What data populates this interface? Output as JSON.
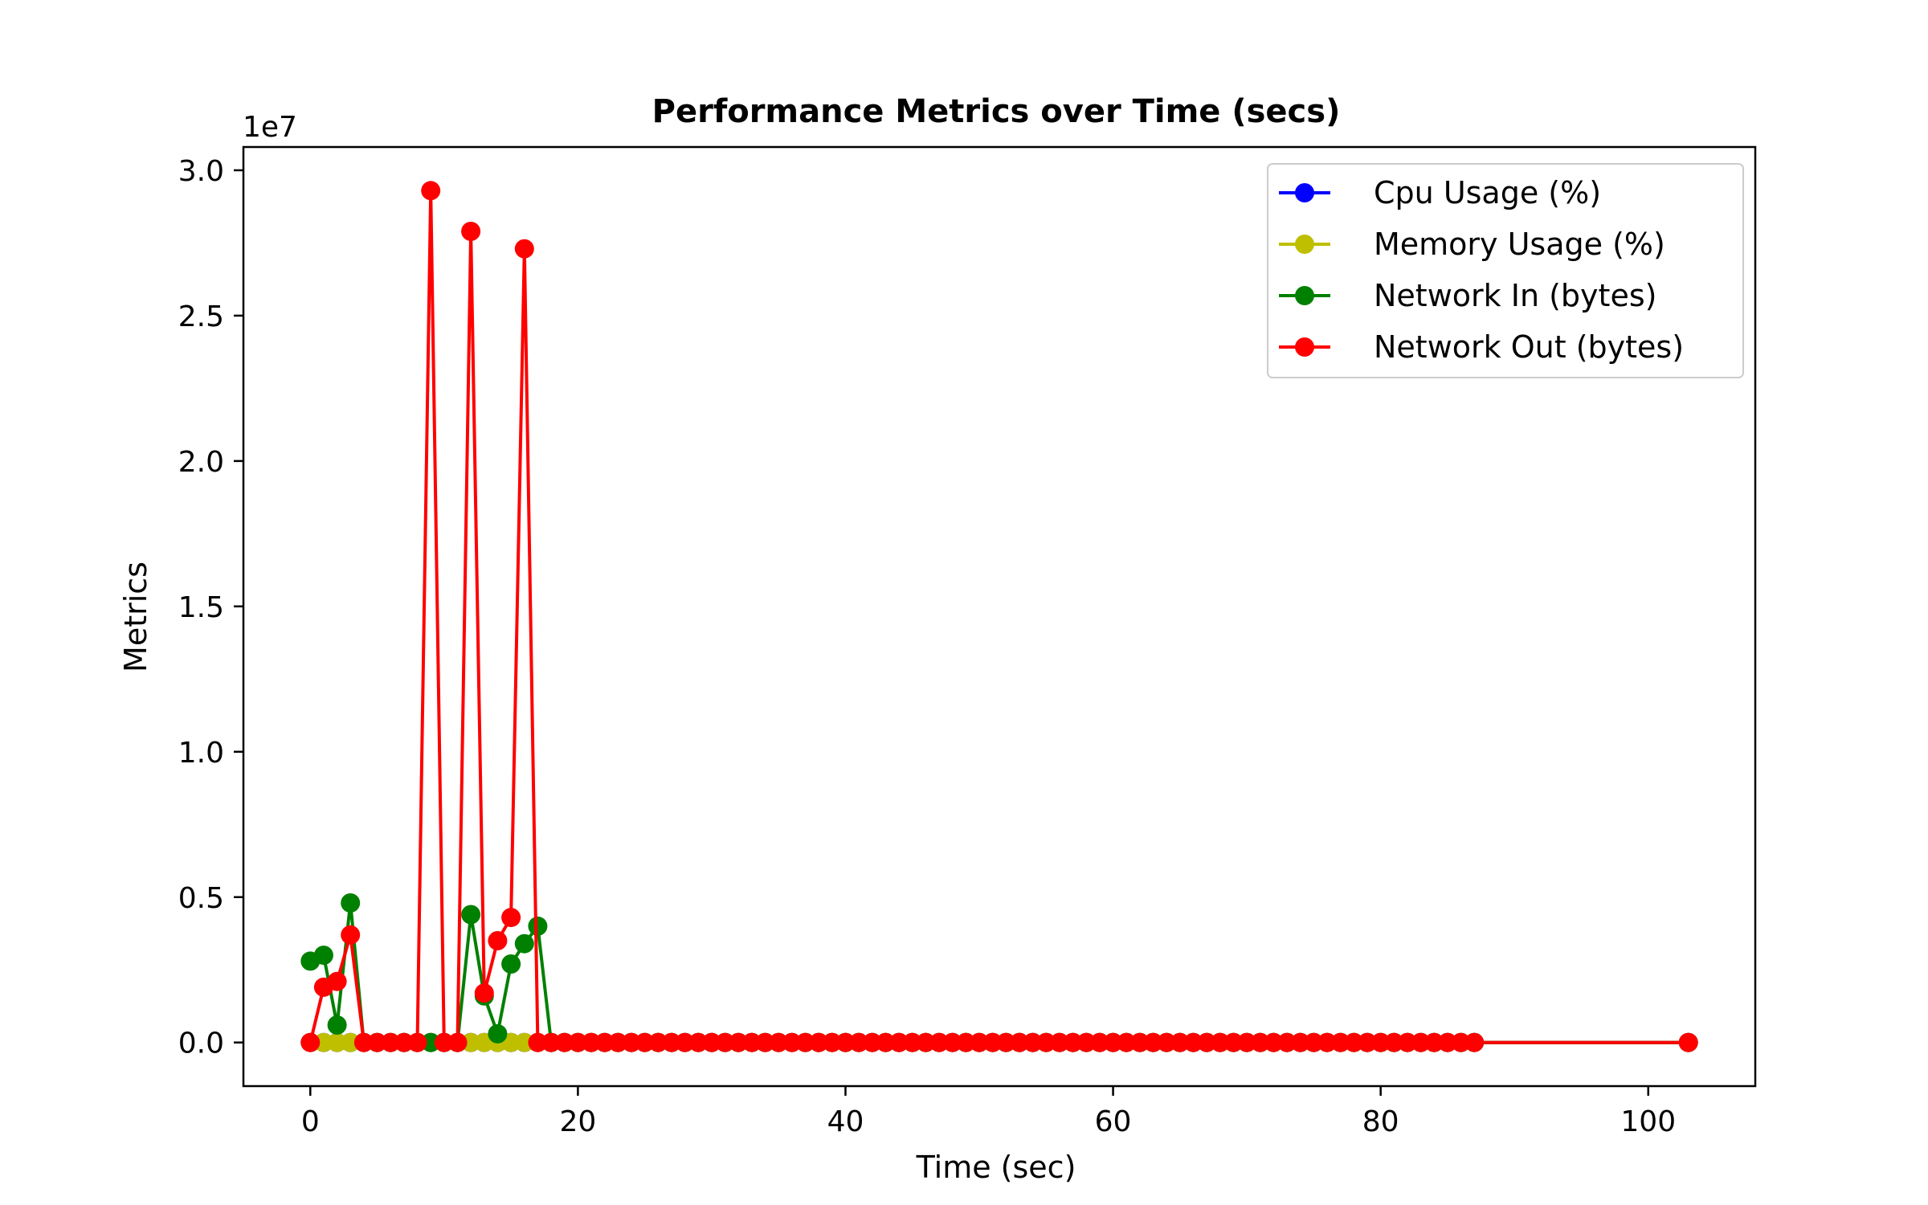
{
  "chart_data": {
    "type": "line",
    "title": "Performance Metrics over Time (secs)",
    "xlabel": "Time (sec)",
    "ylabel": "Metrics",
    "y_offset_label": "1e7",
    "xlim": [
      -5,
      108
    ],
    "ylim": [
      -1500000,
      30800000
    ],
    "x_ticks": [
      0,
      20,
      40,
      60,
      80,
      100
    ],
    "x_tick_labels": [
      "0",
      "20",
      "40",
      "60",
      "80",
      "100"
    ],
    "y_ticks": [
      0,
      5000000,
      10000000,
      15000000,
      20000000,
      25000000,
      30000000
    ],
    "y_tick_labels": [
      "0.0",
      "0.5",
      "1.0",
      "1.5",
      "2.0",
      "2.5",
      "3.0"
    ],
    "grid": false,
    "legend_position": "top-right",
    "x": [
      0,
      1,
      2,
      3,
      4,
      5,
      6,
      7,
      8,
      9,
      10,
      11,
      12,
      13,
      14,
      15,
      16,
      17,
      18,
      19,
      20,
      21,
      22,
      23,
      24,
      25,
      26,
      27,
      28,
      29,
      30,
      31,
      32,
      33,
      34,
      35,
      36,
      37,
      38,
      39,
      40,
      41,
      42,
      43,
      44,
      45,
      46,
      47,
      48,
      49,
      50,
      51,
      52,
      53,
      54,
      55,
      56,
      57,
      58,
      59,
      60,
      61,
      62,
      63,
      64,
      65,
      66,
      67,
      68,
      69,
      70,
      71,
      72,
      73,
      74,
      75,
      76,
      77,
      78,
      79,
      80,
      81,
      82,
      83,
      84,
      85,
      86,
      87,
      103
    ],
    "series": [
      {
        "name": "Cpu Usage (%)",
        "color": "#0000ff",
        "values": [
          0,
          0,
          0,
          0,
          0,
          0,
          0,
          0,
          0,
          0,
          0,
          0,
          0,
          0,
          0,
          0,
          0,
          0,
          0,
          0,
          0,
          0,
          0,
          0,
          0,
          0,
          0,
          0,
          0,
          0,
          0,
          0,
          0,
          0,
          0,
          0,
          0,
          0,
          0,
          0,
          0,
          0,
          0,
          0,
          0,
          0,
          0,
          0,
          0,
          0,
          0,
          0,
          0,
          0,
          0,
          0,
          0,
          0,
          0,
          0,
          0,
          0,
          0,
          0,
          0,
          0,
          0,
          0,
          0,
          0,
          0,
          0,
          0,
          0,
          0,
          0,
          0,
          0,
          0,
          0,
          0,
          0,
          0,
          0,
          0,
          0,
          0,
          0,
          0
        ]
      },
      {
        "name": "Memory Usage (%)",
        "color": "#bfbf00",
        "values": [
          0,
          0,
          0,
          0,
          0,
          0,
          0,
          0,
          0,
          0,
          0,
          0,
          0,
          0,
          0,
          0,
          0,
          0,
          0,
          0,
          0,
          0,
          0,
          0,
          0,
          0,
          0,
          0,
          0,
          0,
          0,
          0,
          0,
          0,
          0,
          0,
          0,
          0,
          0,
          0,
          0,
          0,
          0,
          0,
          0,
          0,
          0,
          0,
          0,
          0,
          0,
          0,
          0,
          0,
          0,
          0,
          0,
          0,
          0,
          0,
          0,
          0,
          0,
          0,
          0,
          0,
          0,
          0,
          0,
          0,
          0,
          0,
          0,
          0,
          0,
          0,
          0,
          0,
          0,
          0,
          0,
          0,
          0,
          0,
          0,
          0,
          0,
          0,
          0
        ]
      },
      {
        "name": "Network In (bytes)",
        "color": "#008000",
        "values": [
          2800000,
          3000000,
          600000,
          4800000,
          0,
          0,
          0,
          0,
          0,
          0,
          0,
          0,
          4400000,
          1600000,
          300000,
          2700000,
          3400000,
          4000000,
          0,
          0,
          0,
          0,
          0,
          0,
          0,
          0,
          0,
          0,
          0,
          0,
          0,
          0,
          0,
          0,
          0,
          0,
          0,
          0,
          0,
          0,
          0,
          0,
          0,
          0,
          0,
          0,
          0,
          0,
          0,
          0,
          0,
          0,
          0,
          0,
          0,
          0,
          0,
          0,
          0,
          0,
          0,
          0,
          0,
          0,
          0,
          0,
          0,
          0,
          0,
          0,
          0,
          0,
          0,
          0,
          0,
          0,
          0,
          0,
          0,
          0,
          0,
          0,
          0,
          0,
          0,
          0,
          0,
          0,
          0
        ]
      },
      {
        "name": "Network Out (bytes)",
        "color": "#ff0000",
        "values": [
          0,
          1900000,
          2100000,
          3700000,
          0,
          0,
          0,
          0,
          0,
          29300000,
          0,
          0,
          27900000,
          1700000,
          3500000,
          4300000,
          27300000,
          0,
          0,
          0,
          0,
          0,
          0,
          0,
          0,
          0,
          0,
          0,
          0,
          0,
          0,
          0,
          0,
          0,
          0,
          0,
          0,
          0,
          0,
          0,
          0,
          0,
          0,
          0,
          0,
          0,
          0,
          0,
          0,
          0,
          0,
          0,
          0,
          0,
          0,
          0,
          0,
          0,
          0,
          0,
          0,
          0,
          0,
          0,
          0,
          0,
          0,
          0,
          0,
          0,
          0,
          0,
          0,
          0,
          0,
          0,
          0,
          0,
          0,
          0,
          0,
          0,
          0,
          0,
          0,
          0,
          0,
          0,
          0
        ]
      }
    ]
  }
}
